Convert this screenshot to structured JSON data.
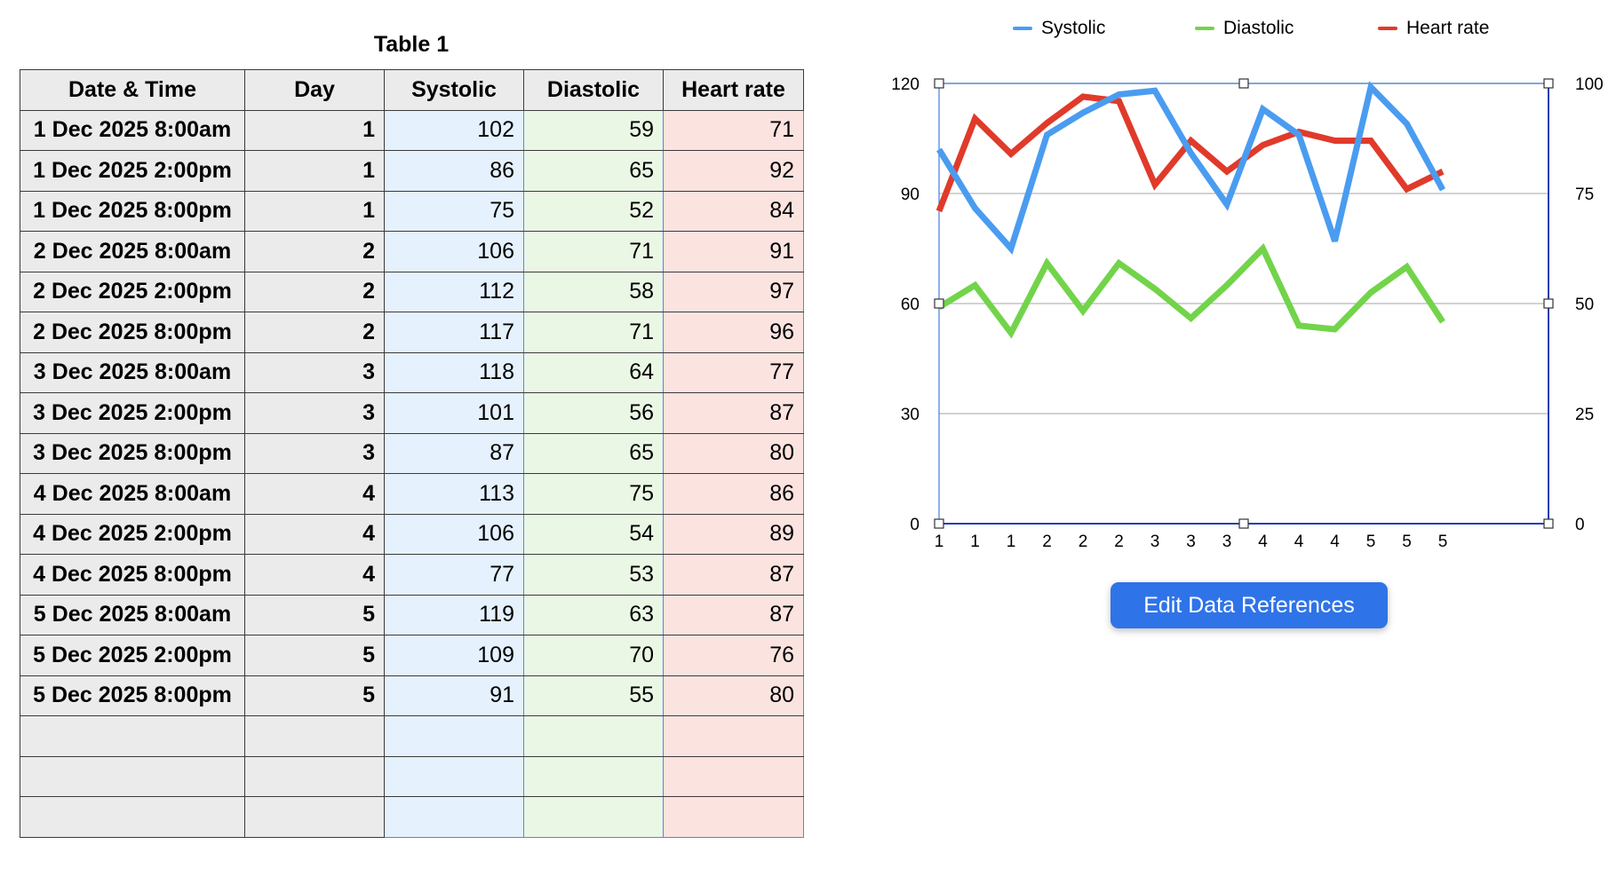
{
  "table": {
    "title": "Table 1",
    "headers": [
      "Date & Time",
      "Day",
      "Systolic",
      "Diastolic",
      "Heart rate"
    ],
    "rows": [
      [
        "1 Dec 2025 8:00am",
        "1",
        "102",
        "59",
        "71"
      ],
      [
        "1 Dec 2025 2:00pm",
        "1",
        "86",
        "65",
        "92"
      ],
      [
        "1 Dec 2025 8:00pm",
        "1",
        "75",
        "52",
        "84"
      ],
      [
        "2 Dec 2025 8:00am",
        "2",
        "106",
        "71",
        "91"
      ],
      [
        "2 Dec 2025 2:00pm",
        "2",
        "112",
        "58",
        "97"
      ],
      [
        "2 Dec 2025 8:00pm",
        "2",
        "117",
        "71",
        "96"
      ],
      [
        "3 Dec 2025 8:00am",
        "3",
        "118",
        "64",
        "77"
      ],
      [
        "3 Dec 2025 2:00pm",
        "3",
        "101",
        "56",
        "87"
      ],
      [
        "3 Dec 2025 8:00pm",
        "3",
        "87",
        "65",
        "80"
      ],
      [
        "4 Dec 2025 8:00am",
        "4",
        "113",
        "75",
        "86"
      ],
      [
        "4 Dec 2025 2:00pm",
        "4",
        "106",
        "54",
        "89"
      ],
      [
        "4 Dec 2025 8:00pm",
        "4",
        "77",
        "53",
        "87"
      ],
      [
        "5 Dec 2025 8:00am",
        "5",
        "119",
        "63",
        "87"
      ],
      [
        "5 Dec 2025 2:00pm",
        "5",
        "109",
        "70",
        "76"
      ],
      [
        "5 Dec 2025 8:00pm",
        "5",
        "91",
        "55",
        "80"
      ],
      [
        "",
        "",
        "",
        "",
        ""
      ],
      [
        "",
        "",
        "",
        "",
        ""
      ],
      [
        "",
        "",
        "",
        "",
        ""
      ]
    ]
  },
  "chart_data": {
    "type": "line",
    "categories": [
      "1",
      "1",
      "1",
      "2",
      "2",
      "2",
      "3",
      "3",
      "3",
      "4",
      "4",
      "4",
      "5",
      "5",
      "5"
    ],
    "series": [
      {
        "name": "Systolic",
        "axis": "left",
        "color": "#4a9cf0",
        "values": [
          102,
          86,
          75,
          106,
          112,
          117,
          118,
          101,
          87,
          113,
          106,
          77,
          119,
          109,
          91
        ]
      },
      {
        "name": "Diastolic",
        "axis": "left",
        "color": "#72d44a",
        "values": [
          59,
          65,
          52,
          71,
          58,
          71,
          64,
          56,
          65,
          75,
          54,
          53,
          63,
          70,
          55
        ]
      },
      {
        "name": "Heart rate",
        "axis": "right",
        "color": "#e03a2a",
        "values": [
          71,
          92,
          84,
          91,
          97,
          96,
          77,
          87,
          80,
          86,
          89,
          87,
          87,
          76,
          80
        ]
      }
    ],
    "y_left": {
      "min": 0,
      "max": 120,
      "ticks": [
        0,
        30,
        60,
        90,
        120
      ]
    },
    "y_right": {
      "min": 0,
      "max": 100,
      "ticks": [
        0,
        25,
        50,
        75,
        100
      ]
    },
    "grid": true,
    "legend": "top"
  },
  "button": {
    "label": "Edit Data References"
  }
}
